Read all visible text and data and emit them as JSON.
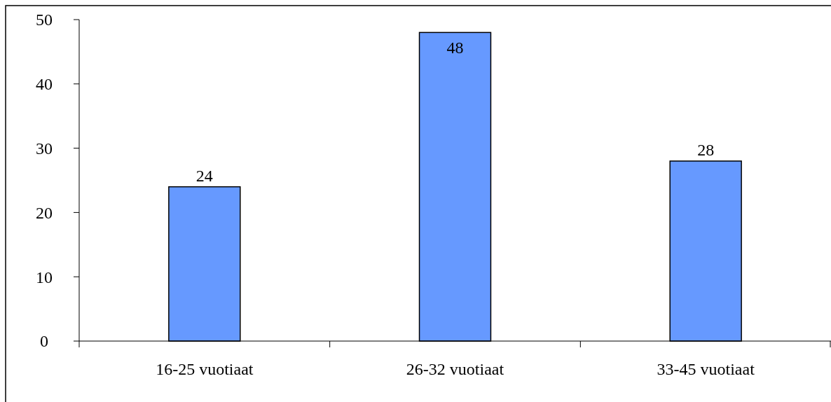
{
  "chart_data": {
    "type": "bar",
    "categories": [
      "16-25 vuotiaat",
      "26-32 vuotiaat",
      "33-45 vuotiaat"
    ],
    "values": [
      24,
      48,
      28
    ],
    "color": "#6699ff",
    "ylim": [
      0,
      50
    ],
    "yticks": [
      0,
      10,
      20,
      30,
      40,
      50
    ],
    "grid": false,
    "data_labels": true
  }
}
